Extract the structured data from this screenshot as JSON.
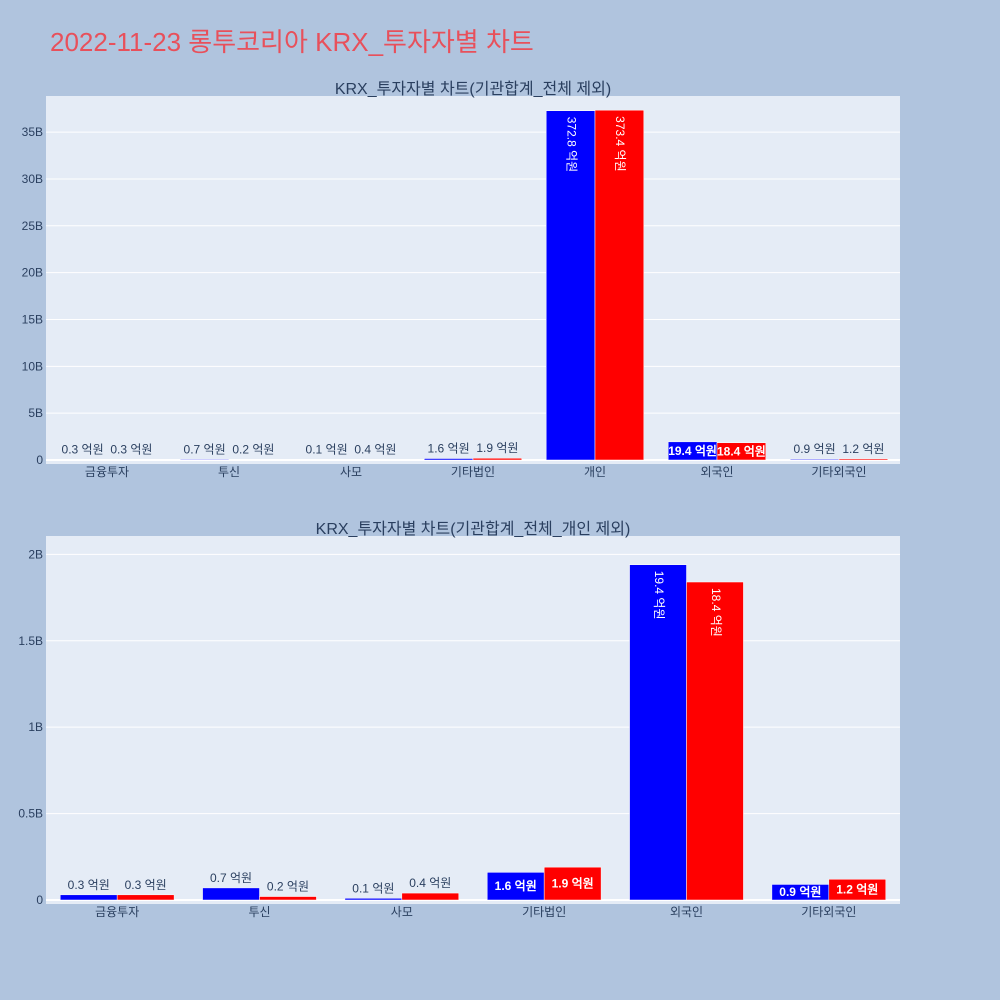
{
  "page_title": "2022-11-23 롱투코리아 KRX_투자자별 차트",
  "colors": {
    "page_bg": "#b0c4de",
    "plot_bg": "#e5ecf6",
    "series_a": "#0000ff",
    "series_b": "#ff0000",
    "title": "#e8505b",
    "text": "#2a3f5f"
  },
  "chart_data": [
    {
      "type": "bar",
      "title": "KRX_투자자별 차트(기관합계_전체 제외)",
      "categories": [
        "금융투자",
        "투신",
        "사모",
        "기타법인",
        "개인",
        "외국인",
        "기타외국인"
      ],
      "series": [
        {
          "values": [
            30000000,
            70000000,
            10000000,
            160000000,
            37280000000,
            1940000000,
            90000000
          ]
        },
        {
          "values": [
            30000000,
            20000000,
            40000000,
            190000000,
            37340000000,
            1840000000,
            120000000
          ]
        }
      ],
      "labels": [
        [
          "0.3 억원",
          "0.7 억원",
          "0.1 억원",
          "1.6 억원",
          "372.8 억원",
          "19.4 억원",
          "0.9 억원"
        ],
        [
          "0.3 억원",
          "0.2 억원",
          "0.4 억원",
          "1.9 억원",
          "373.4 억원",
          "18.4 억원",
          "1.2 억원"
        ]
      ],
      "ylim": [
        0,
        38000000000
      ],
      "yticks": [
        0,
        5000000000,
        10000000000,
        15000000000,
        20000000000,
        25000000000,
        30000000000,
        35000000000
      ],
      "ytick_labels": [
        "0",
        "5B",
        "10B",
        "15B",
        "20B",
        "25B",
        "30B",
        "35B"
      ],
      "xlabel": "",
      "ylabel": "",
      "grid": true
    },
    {
      "type": "bar",
      "title": "KRX_투자자별 차트(기관합계_전체_개인 제외)",
      "categories": [
        "금융투자",
        "투신",
        "사모",
        "기타법인",
        "외국인",
        "기타외국인"
      ],
      "series": [
        {
          "values": [
            30000000,
            70000000,
            10000000,
            160000000,
            1940000000,
            90000000
          ]
        },
        {
          "values": [
            30000000,
            20000000,
            40000000,
            190000000,
            1840000000,
            120000000
          ]
        }
      ],
      "labels": [
        [
          "0.3 억원",
          "0.7 억원",
          "0.1 억원",
          "1.6 억원",
          "19.4 억원",
          "0.9 억원"
        ],
        [
          "0.3 억원",
          "0.2 억원",
          "0.4 억원",
          "1.9 억원",
          "18.4 억원",
          "1.2 억원"
        ]
      ],
      "ylim": [
        0,
        2060000000
      ],
      "yticks": [
        0,
        500000000,
        1000000000,
        1500000000,
        2000000000
      ],
      "ytick_labels": [
        "0",
        "0.5B",
        "1B",
        "1.5B",
        "2B"
      ],
      "xlabel": "",
      "ylabel": "",
      "grid": true
    }
  ]
}
